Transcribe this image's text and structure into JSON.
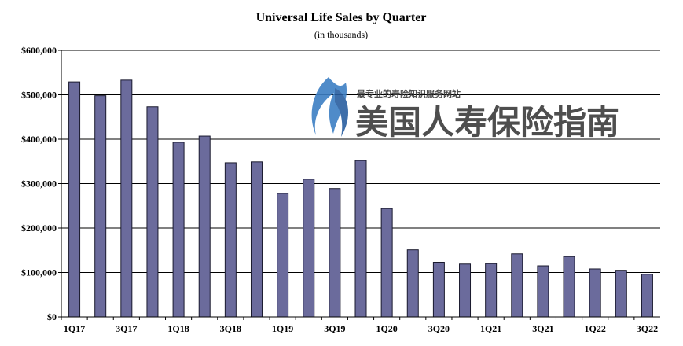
{
  "chart_data": {
    "type": "bar",
    "title": "Universal Life Sales by Quarter",
    "subtitle": "(in thousands)",
    "xlabel": "",
    "ylabel": "",
    "ylim": [
      0,
      600000
    ],
    "yticks": [
      0,
      100000,
      200000,
      300000,
      400000,
      500000,
      600000
    ],
    "ytick_labels": [
      "$0",
      "$100,000",
      "$200,000",
      "$300,000",
      "$400,000",
      "$500,000",
      "$600,000"
    ],
    "categories": [
      "1Q17",
      "2Q17",
      "3Q17",
      "4Q17",
      "1Q18",
      "2Q18",
      "3Q18",
      "4Q18",
      "1Q19",
      "2Q19",
      "3Q19",
      "4Q19",
      "1Q20",
      "2Q20",
      "3Q20",
      "4Q20",
      "1Q21",
      "2Q21",
      "3Q21",
      "4Q21",
      "1Q22",
      "2Q22",
      "3Q22"
    ],
    "x_tick_labels": [
      "1Q17",
      "",
      "3Q17",
      "",
      "1Q18",
      "",
      "3Q18",
      "",
      "1Q19",
      "",
      "3Q19",
      "",
      "1Q20",
      "",
      "3Q20",
      "",
      "1Q21",
      "",
      "3Q21",
      "",
      "1Q22",
      "",
      "3Q22"
    ],
    "values": [
      529000,
      498000,
      533000,
      473000,
      393000,
      407000,
      347000,
      349000,
      278000,
      310000,
      289000,
      352000,
      244000,
      151000,
      123000,
      119000,
      120000,
      142000,
      115000,
      136000,
      108000,
      105000,
      96000
    ],
    "grid": true,
    "colors": {
      "bar": "#6b6b9c",
      "bar_stroke": "#1a1a2e",
      "grid": "#000000"
    }
  },
  "watermark": {
    "tagline": "最专业的寿险知识服务网站",
    "name": "美国人寿保险指南",
    "icon": "flame-logo-icon"
  }
}
